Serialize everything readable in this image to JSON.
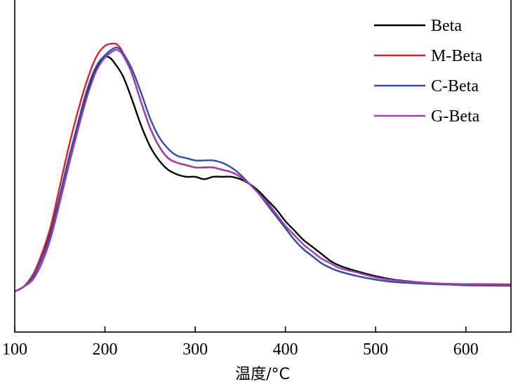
{
  "chart_data": {
    "type": "line",
    "title": "",
    "xlabel": "温度/°C",
    "ylabel": "",
    "xlim": [
      100,
      650
    ],
    "ylim": [
      -0.15,
      1.1
    ],
    "xticks": [
      100,
      200,
      300,
      400,
      500,
      600
    ],
    "yticks": [],
    "grid": false,
    "legend_position": "top-right",
    "series": [
      {
        "name": "Beta",
        "color": "#000000",
        "x": [
          100,
          110,
          120,
          130,
          140,
          150,
          160,
          170,
          180,
          190,
          200,
          205,
          210,
          220,
          230,
          240,
          250,
          260,
          270,
          280,
          290,
          300,
          310,
          320,
          330,
          340,
          350,
          360,
          370,
          380,
          390,
          400,
          410,
          420,
          430,
          440,
          450,
          460,
          480,
          500,
          520,
          550,
          580,
          600,
          620,
          650
        ],
        "y": [
          0.0,
          0.02,
          0.07,
          0.15,
          0.26,
          0.41,
          0.57,
          0.71,
          0.84,
          0.95,
          1.0,
          1.0,
          0.98,
          0.92,
          0.82,
          0.71,
          0.62,
          0.56,
          0.52,
          0.5,
          0.49,
          0.49,
          0.48,
          0.49,
          0.49,
          0.49,
          0.48,
          0.46,
          0.43,
          0.39,
          0.35,
          0.3,
          0.26,
          0.22,
          0.19,
          0.16,
          0.13,
          0.11,
          0.085,
          0.065,
          0.05,
          0.038,
          0.03,
          0.026,
          0.025,
          0.024
        ]
      },
      {
        "name": "M-Beta",
        "color": "#e01f26",
        "x": [
          100,
          110,
          120,
          130,
          140,
          150,
          160,
          170,
          180,
          190,
          200,
          210,
          215,
          220,
          230,
          240,
          250,
          260,
          270,
          280,
          290,
          300,
          310,
          320,
          330,
          340,
          350,
          360,
          370,
          380,
          390,
          400,
          410,
          420,
          430,
          440,
          450,
          460,
          480,
          500,
          520,
          550,
          580,
          600,
          620,
          650
        ],
        "y": [
          0.0,
          0.02,
          0.07,
          0.16,
          0.28,
          0.45,
          0.62,
          0.77,
          0.9,
          1.0,
          1.05,
          1.06,
          1.05,
          1.02,
          0.93,
          0.81,
          0.7,
          0.62,
          0.57,
          0.55,
          0.54,
          0.53,
          0.53,
          0.53,
          0.52,
          0.51,
          0.49,
          0.46,
          0.42,
          0.37,
          0.32,
          0.27,
          0.22,
          0.18,
          0.15,
          0.12,
          0.1,
          0.085,
          0.065,
          0.05,
          0.04,
          0.035,
          0.032,
          0.031,
          0.031,
          0.03
        ]
      },
      {
        "name": "C-Beta",
        "color": "#3350a3",
        "x": [
          100,
          110,
          120,
          130,
          140,
          150,
          160,
          170,
          180,
          190,
          200,
          210,
          215,
          220,
          230,
          240,
          250,
          260,
          270,
          280,
          290,
          300,
          310,
          320,
          330,
          340,
          350,
          360,
          370,
          380,
          390,
          400,
          410,
          420,
          430,
          440,
          450,
          460,
          480,
          500,
          520,
          550,
          580,
          600,
          620,
          650
        ],
        "y": [
          0.0,
          0.02,
          0.06,
          0.14,
          0.25,
          0.41,
          0.57,
          0.72,
          0.86,
          0.96,
          1.01,
          1.04,
          1.04,
          1.02,
          0.95,
          0.85,
          0.74,
          0.66,
          0.61,
          0.58,
          0.57,
          0.56,
          0.56,
          0.56,
          0.55,
          0.53,
          0.5,
          0.46,
          0.42,
          0.37,
          0.32,
          0.27,
          0.22,
          0.18,
          0.15,
          0.12,
          0.1,
          0.085,
          0.065,
          0.05,
          0.04,
          0.033,
          0.029,
          0.027,
          0.026,
          0.025
        ]
      },
      {
        "name": "G-Beta",
        "color": "#9b3fae",
        "x": [
          100,
          110,
          120,
          130,
          140,
          150,
          160,
          170,
          180,
          190,
          200,
          210,
          215,
          220,
          230,
          240,
          250,
          260,
          270,
          280,
          290,
          300,
          310,
          320,
          330,
          340,
          350,
          360,
          370,
          380,
          390,
          400,
          410,
          420,
          430,
          440,
          450,
          460,
          480,
          500,
          520,
          550,
          580,
          600,
          620,
          650
        ],
        "y": [
          0.0,
          0.02,
          0.05,
          0.12,
          0.23,
          0.38,
          0.54,
          0.69,
          0.83,
          0.94,
          1.0,
          1.03,
          1.03,
          1.01,
          0.93,
          0.81,
          0.7,
          0.62,
          0.57,
          0.55,
          0.54,
          0.53,
          0.53,
          0.53,
          0.52,
          0.51,
          0.49,
          0.46,
          0.42,
          0.38,
          0.33,
          0.28,
          0.24,
          0.2,
          0.17,
          0.14,
          0.12,
          0.1,
          0.08,
          0.06,
          0.048,
          0.038,
          0.032,
          0.03,
          0.029,
          0.028
        ]
      }
    ]
  }
}
